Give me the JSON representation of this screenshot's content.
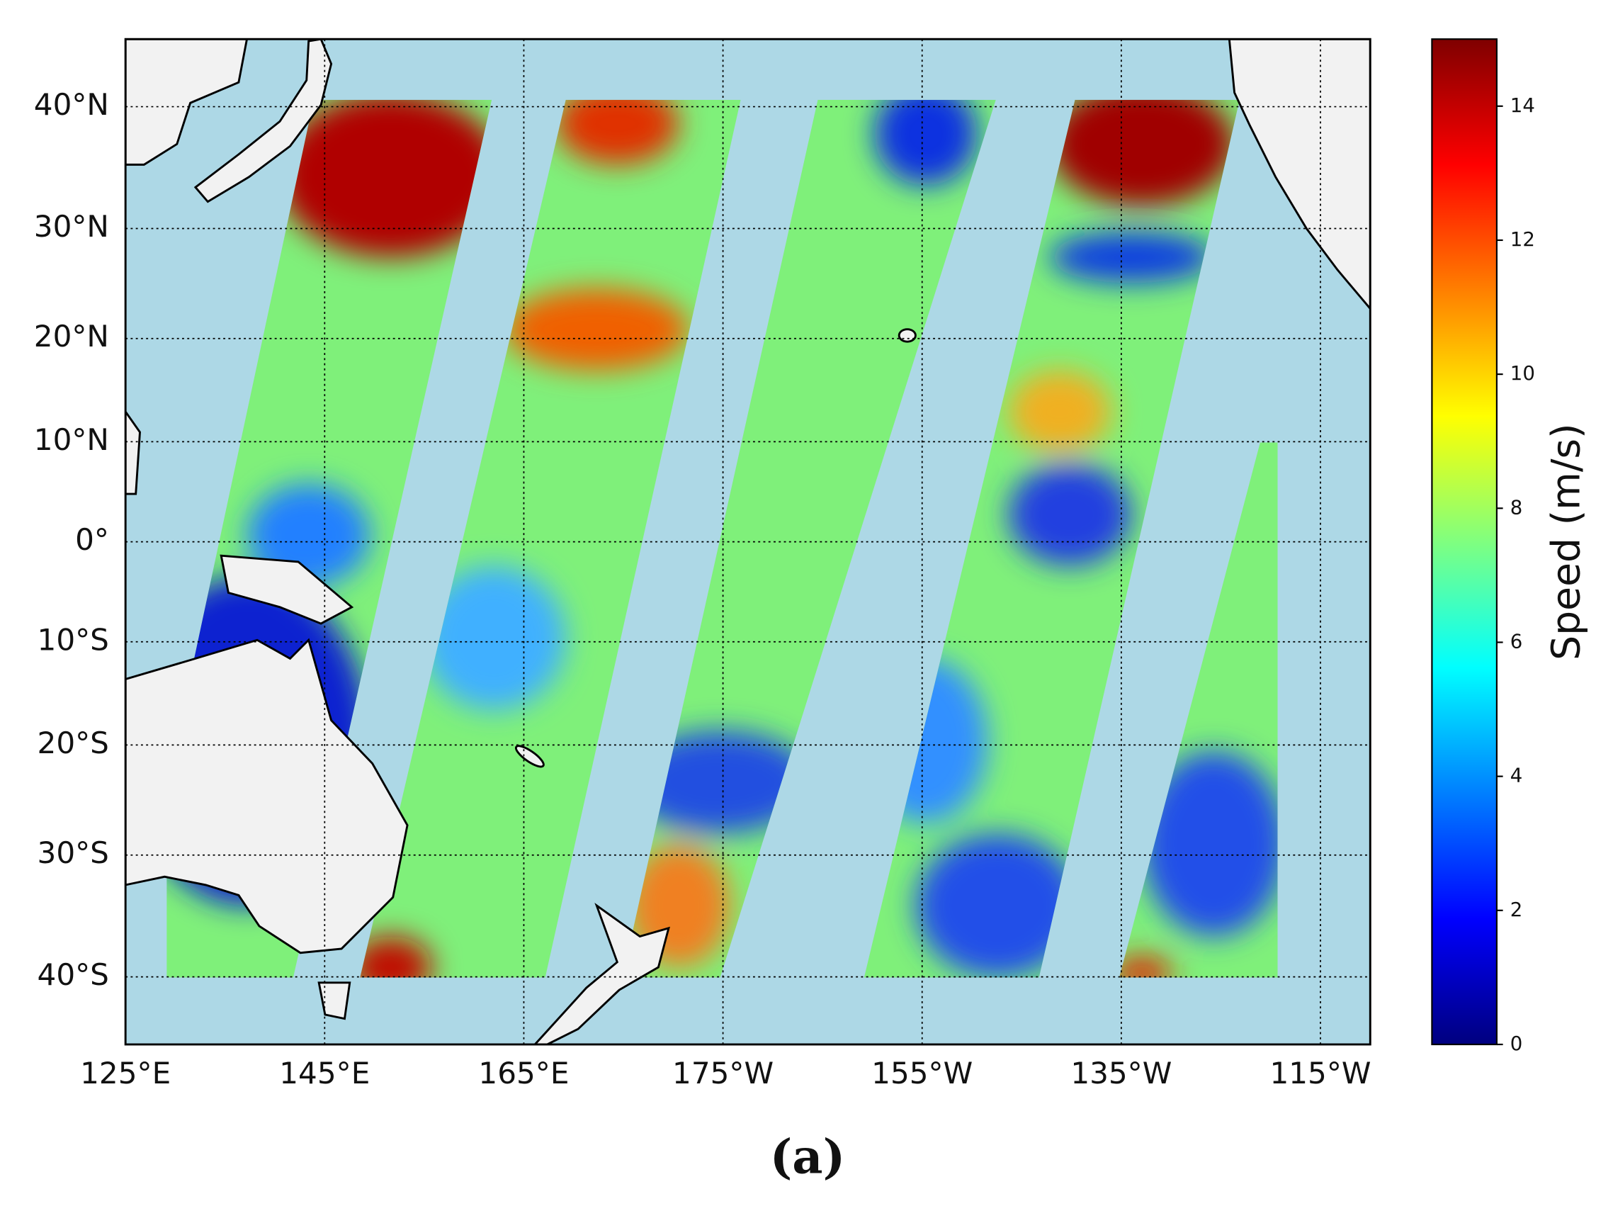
{
  "chart_data": {
    "type": "map",
    "projection": "mercator",
    "caption": "(a)",
    "xlim": [
      125,
      250
    ],
    "ylim": [
      -45,
      45
    ],
    "xticks": [
      {
        "value": 125,
        "label": "125°E"
      },
      {
        "value": 145,
        "label": "145°E"
      },
      {
        "value": 165,
        "label": "165°E"
      },
      {
        "value": 185,
        "label": "175°W"
      },
      {
        "value": 205,
        "label": "155°W"
      },
      {
        "value": 225,
        "label": "135°W"
      },
      {
        "value": 245,
        "label": "115°W"
      }
    ],
    "yticks": [
      {
        "value": 40,
        "label": "40°N"
      },
      {
        "value": 30,
        "label": "30°N"
      },
      {
        "value": 20,
        "label": "20°N"
      },
      {
        "value": 10,
        "label": "10°N"
      },
      {
        "value": 0,
        "label": "0°"
      },
      {
        "value": -10,
        "label": "10°S"
      },
      {
        "value": -20,
        "label": "20°S"
      },
      {
        "value": -30,
        "label": "30°S"
      },
      {
        "value": -40,
        "label": "40°S"
      }
    ],
    "grid": true,
    "ocean_color": "#add8e6",
    "land_color": "#f2f2f2",
    "colorbar": {
      "label": "Speed (m/s)",
      "colormap": "jet",
      "clim": [
        0,
        15
      ],
      "ticks": [
        0,
        2,
        4,
        6,
        8,
        10,
        12,
        14
      ]
    }
  }
}
